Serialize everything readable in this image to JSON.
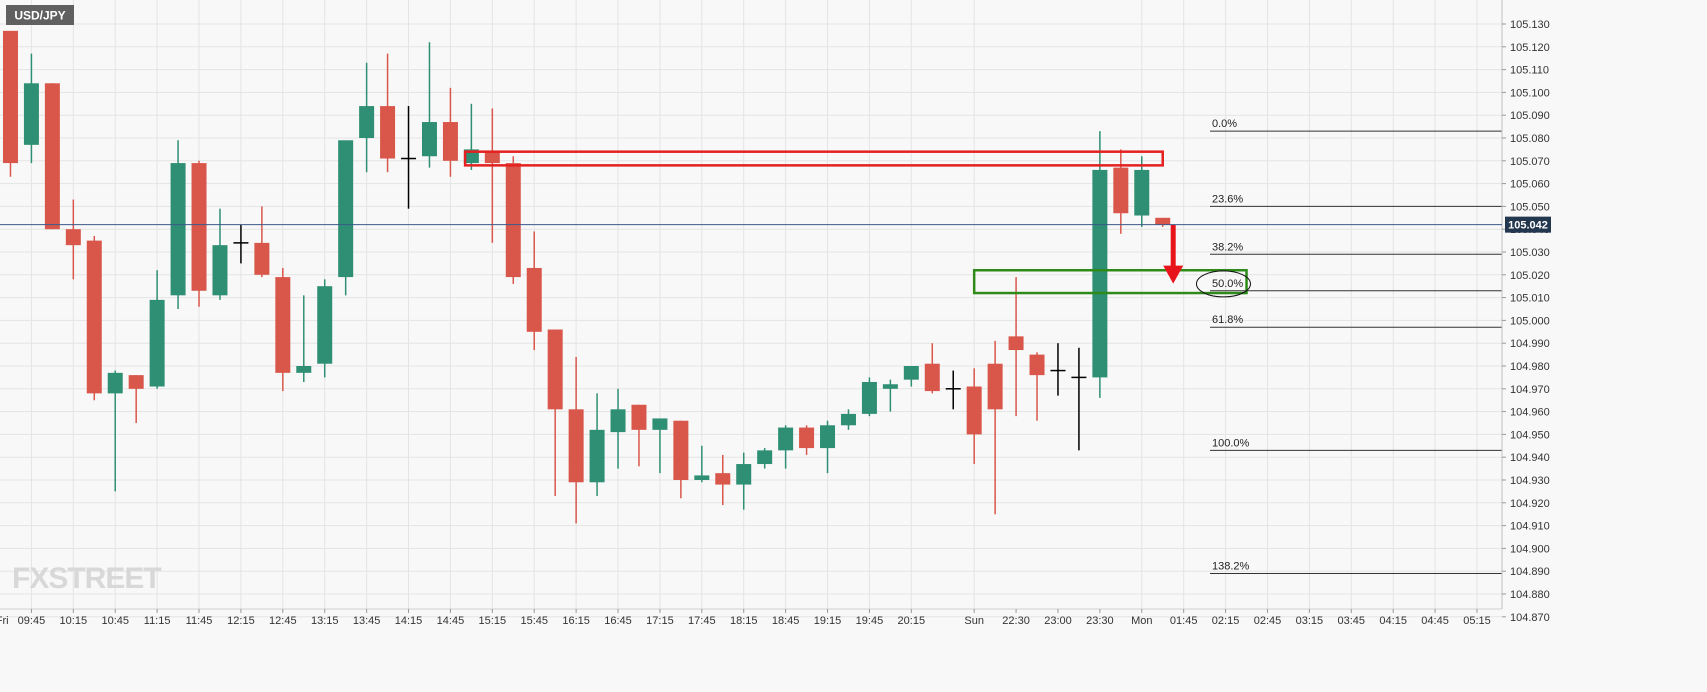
{
  "chart_data": {
    "type": "candlestick",
    "symbol": "USD/JPY",
    "brand": "FXSTREET",
    "current_price": "105.042",
    "colors": {
      "up": "#2f8f74",
      "down": "#d9574a",
      "doji": "#000000",
      "grid": "#e4e4e4",
      "resistance_box": "#e52020",
      "support_box": "#2e8b1a",
      "arrow": "#e8141c",
      "price_line": "#3a5a8a",
      "price_tag": "#23374f"
    },
    "ylim": [
      104.868,
      105.138
    ],
    "y_ticks": [
      "105.130",
      "105.120",
      "105.110",
      "105.100",
      "105.090",
      "105.080",
      "105.070",
      "105.060",
      "105.050",
      "105.040",
      "105.030",
      "105.020",
      "105.010",
      "105.000",
      "104.990",
      "104.980",
      "104.970",
      "104.960",
      "104.950",
      "104.940",
      "104.930",
      "104.920",
      "104.910",
      "104.900",
      "104.890",
      "104.880",
      "104.870"
    ],
    "x_ticks": [
      {
        "label": "Fri",
        "slot": -0.3
      },
      {
        "label": "09:45",
        "slot": 1.5
      },
      {
        "label": "10:15",
        "slot": 3.5
      },
      {
        "label": "10:45",
        "slot": 5.5
      },
      {
        "label": "11:15",
        "slot": 7.5
      },
      {
        "label": "11:45",
        "slot": 9.5
      },
      {
        "label": "12:15",
        "slot": 11.5
      },
      {
        "label": "12:45",
        "slot": 13.5
      },
      {
        "label": "13:15",
        "slot": 15.5
      },
      {
        "label": "13:45",
        "slot": 17.5
      },
      {
        "label": "14:15",
        "slot": 19.5
      },
      {
        "label": "14:45",
        "slot": 21.5
      },
      {
        "label": "15:15",
        "slot": 23.5
      },
      {
        "label": "15:45",
        "slot": 25.5
      },
      {
        "label": "16:15",
        "slot": 27.5
      },
      {
        "label": "16:45",
        "slot": 29.5
      },
      {
        "label": "17:15",
        "slot": 31.5
      },
      {
        "label": "17:45",
        "slot": 33.5
      },
      {
        "label": "18:15",
        "slot": 35.5
      },
      {
        "label": "18:45",
        "slot": 37.5
      },
      {
        "label": "19:15",
        "slot": 39.5
      },
      {
        "label": "19:45",
        "slot": 41.5
      },
      {
        "label": "20:15",
        "slot": 43.5
      },
      {
        "label": "Sun",
        "slot": 46.5
      },
      {
        "label": "22:30",
        "slot": 48.5
      },
      {
        "label": "23:00",
        "slot": 50.5
      },
      {
        "label": "23:30",
        "slot": 52.5
      },
      {
        "label": "Mon",
        "slot": 54.5
      },
      {
        "label": "01:45",
        "slot": 56.5
      },
      {
        "label": "02:15",
        "slot": 58.5
      },
      {
        "label": "02:45",
        "slot": 60.5
      },
      {
        "label": "03:15",
        "slot": 62.5
      },
      {
        "label": "03:45",
        "slot": 64.5
      },
      {
        "label": "04:15",
        "slot": 66.5
      },
      {
        "label": "04:45",
        "slot": 68.5
      },
      {
        "label": "05:15",
        "slot": 70.5
      }
    ],
    "vertical_grid_slots": [
      -0.3,
      1.5,
      3.5,
      5.5,
      7.5,
      9.5,
      11.5,
      13.5,
      15.5,
      17.5,
      19.5,
      21.5,
      23.5,
      25.5,
      27.5,
      29.5,
      31.5,
      33.5,
      35.5,
      37.5,
      39.5,
      41.5,
      43.5,
      46.5,
      54.5,
      56.5,
      58.5,
      60.5,
      62.5,
      64.5,
      66.5,
      68.5,
      70.5
    ],
    "candles": [
      {
        "o": 105.127,
        "h": 105.127,
        "l": 105.063,
        "c": 105.069
      },
      {
        "o": 105.077,
        "h": 105.117,
        "l": 105.069,
        "c": 105.104
      },
      {
        "o": 105.104,
        "h": 105.104,
        "l": 105.04,
        "c": 105.04
      },
      {
        "o": 105.04,
        "h": 105.053,
        "l": 105.018,
        "c": 105.033
      },
      {
        "o": 105.035,
        "h": 105.037,
        "l": 104.965,
        "c": 104.968
      },
      {
        "o": 104.968,
        "h": 104.978,
        "l": 104.925,
        "c": 104.977
      },
      {
        "o": 104.976,
        "h": 104.976,
        "l": 104.955,
        "c": 104.97
      },
      {
        "o": 104.971,
        "h": 105.022,
        "l": 104.97,
        "c": 105.009
      },
      {
        "o": 105.011,
        "h": 105.079,
        "l": 105.005,
        "c": 105.069
      },
      {
        "o": 105.069,
        "h": 105.07,
        "l": 105.006,
        "c": 105.013
      },
      {
        "o": 105.011,
        "h": 105.049,
        "l": 105.009,
        "c": 105.033
      },
      {
        "o": 105.034,
        "h": 105.042,
        "l": 105.025,
        "c": 105.034
      },
      {
        "o": 105.034,
        "h": 105.05,
        "l": 105.019,
        "c": 105.02
      },
      {
        "o": 105.019,
        "h": 105.023,
        "l": 104.969,
        "c": 104.977
      },
      {
        "o": 104.977,
        "h": 105.011,
        "l": 104.973,
        "c": 104.98
      },
      {
        "o": 104.981,
        "h": 105.018,
        "l": 104.975,
        "c": 105.015
      },
      {
        "o": 105.019,
        "h": 105.078,
        "l": 105.011,
        "c": 105.079
      },
      {
        "o": 105.08,
        "h": 105.113,
        "l": 105.065,
        "c": 105.094
      },
      {
        "o": 105.094,
        "h": 105.117,
        "l": 105.065,
        "c": 105.071
      },
      {
        "o": 105.071,
        "h": 105.094,
        "l": 105.049,
        "c": 105.071
      },
      {
        "o": 105.072,
        "h": 105.122,
        "l": 105.067,
        "c": 105.087
      },
      {
        "o": 105.087,
        "h": 105.102,
        "l": 105.063,
        "c": 105.07
      },
      {
        "o": 105.069,
        "h": 105.095,
        "l": 105.066,
        "c": 105.075
      },
      {
        "o": 105.074,
        "h": 105.093,
        "l": 105.034,
        "c": 105.069
      },
      {
        "o": 105.069,
        "h": 105.072,
        "l": 105.016,
        "c": 105.019
      },
      {
        "o": 105.023,
        "h": 105.039,
        "l": 104.987,
        "c": 104.995
      },
      {
        "o": 104.996,
        "h": 104.996,
        "l": 104.923,
        "c": 104.961
      },
      {
        "o": 104.961,
        "h": 104.984,
        "l": 104.911,
        "c": 104.929
      },
      {
        "o": 104.929,
        "h": 104.968,
        "l": 104.923,
        "c": 104.952
      },
      {
        "o": 104.951,
        "h": 104.97,
        "l": 104.935,
        "c": 104.961
      },
      {
        "o": 104.963,
        "h": 104.963,
        "l": 104.936,
        "c": 104.952
      },
      {
        "o": 104.952,
        "h": 104.957,
        "l": 104.933,
        "c": 104.957
      },
      {
        "o": 104.956,
        "h": 104.956,
        "l": 104.922,
        "c": 104.93
      },
      {
        "o": 104.93,
        "h": 104.945,
        "l": 104.929,
        "c": 104.932
      },
      {
        "o": 104.933,
        "h": 104.941,
        "l": 104.919,
        "c": 104.928
      },
      {
        "o": 104.928,
        "h": 104.942,
        "l": 104.917,
        "c": 104.937
      },
      {
        "o": 104.937,
        "h": 104.944,
        "l": 104.935,
        "c": 104.943
      },
      {
        "o": 104.943,
        "h": 104.954,
        "l": 104.935,
        "c": 104.953
      },
      {
        "o": 104.953,
        "h": 104.954,
        "l": 104.941,
        "c": 104.944
      },
      {
        "o": 104.944,
        "h": 104.956,
        "l": 104.933,
        "c": 104.954
      },
      {
        "o": 104.954,
        "h": 104.961,
        "l": 104.952,
        "c": 104.959
      },
      {
        "o": 104.959,
        "h": 104.975,
        "l": 104.958,
        "c": 104.973
      },
      {
        "o": 104.97,
        "h": 104.974,
        "l": 104.96,
        "c": 104.972
      },
      {
        "o": 104.974,
        "h": 104.98,
        "l": 104.971,
        "c": 104.98
      },
      {
        "o": 104.981,
        "h": 104.99,
        "l": 104.968,
        "c": 104.969
      },
      {
        "o": 104.97,
        "h": 104.978,
        "l": 104.961,
        "c": 104.97
      },
      {
        "o": 104.971,
        "h": 104.979,
        "l": 104.937,
        "c": 104.95
      },
      {
        "o": 104.981,
        "h": 104.991,
        "l": 104.915,
        "c": 104.961
      },
      {
        "o": 104.993,
        "h": 105.019,
        "l": 104.958,
        "c": 104.987
      },
      {
        "o": 104.985,
        "h": 104.986,
        "l": 104.956,
        "c": 104.976
      },
      {
        "o": 104.978,
        "h": 104.99,
        "l": 104.967,
        "c": 104.978
      },
      {
        "o": 104.975,
        "h": 104.988,
        "l": 104.943,
        "c": 104.975
      },
      {
        "o": 104.975,
        "h": 105.083,
        "l": 104.966,
        "c": 105.066
      },
      {
        "o": 105.067,
        "h": 105.075,
        "l": 105.038,
        "c": 105.047
      },
      {
        "o": 105.046,
        "h": 105.072,
        "l": 105.041,
        "c": 105.066
      },
      {
        "o": 105.045,
        "h": 105.045,
        "l": 105.041,
        "c": 105.042
      }
    ],
    "fib_levels": [
      {
        "label": "0.0%",
        "value": 105.083
      },
      {
        "label": "23.6%",
        "value": 105.05
      },
      {
        "label": "38.2%",
        "value": 105.029
      },
      {
        "label": "50.0%",
        "value": 105.013
      },
      {
        "label": "61.8%",
        "value": 104.997
      },
      {
        "label": "100.0%",
        "value": 104.943
      },
      {
        "label": "138.2%",
        "value": 104.889
      }
    ],
    "resistance_zone": {
      "from_slot": 22.2,
      "to_slot": 55.5,
      "top": 105.074,
      "bottom": 105.068
    },
    "support_zone": {
      "from_slot": 46.5,
      "to_slot": 59.5,
      "top": 105.022,
      "bottom": 105.012
    },
    "arrow": {
      "slot": 56.0,
      "from": 105.042,
      "to": 105.017
    },
    "highlight_ellipse": {
      "slot": 58.4,
      "value": 105.016
    }
  }
}
